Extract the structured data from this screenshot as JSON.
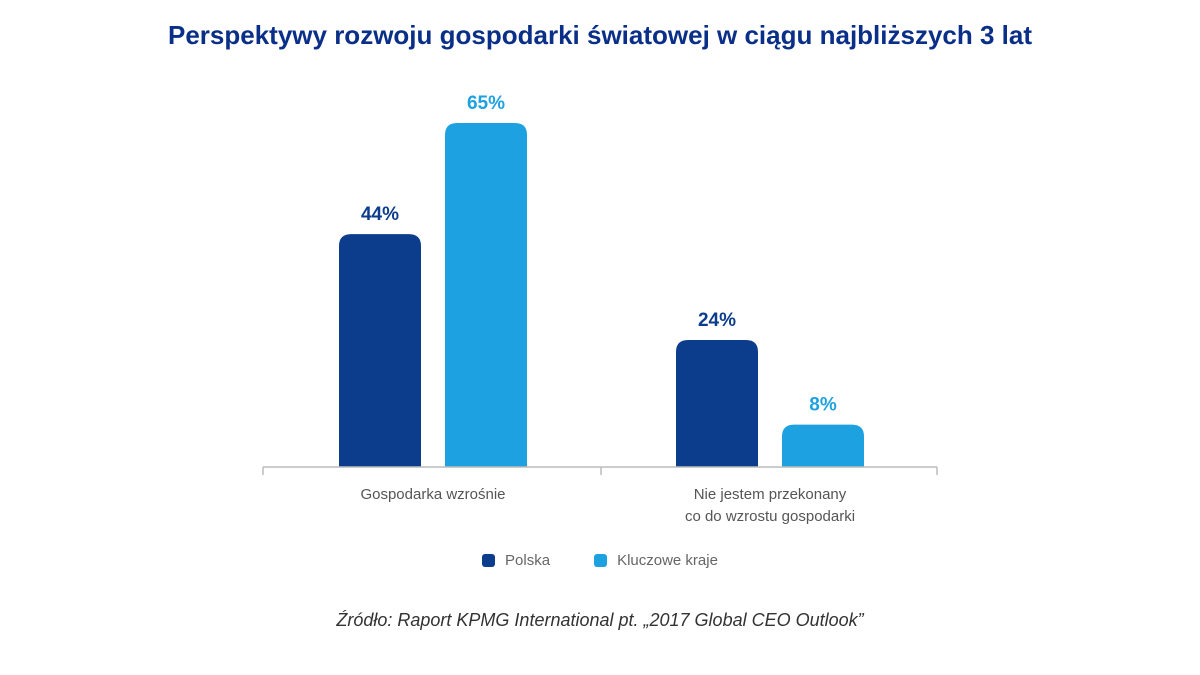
{
  "chart_data": {
    "type": "bar",
    "title": "Perspektywy rozwoju gospodarki światowej w ciągu najbliższych 3 lat",
    "categories": [
      [
        "Gospodarka wzrośnie"
      ],
      [
        "Nie jestem przekonany",
        "co do wzrostu gospodarki"
      ]
    ],
    "series": [
      {
        "name": "Polska",
        "values": [
          44,
          24
        ],
        "labels": [
          "44%",
          "24%"
        ],
        "color": "#0c3d8c"
      },
      {
        "name": "Kluczowe kraje",
        "values": [
          65,
          8
        ],
        "labels": [
          "65%",
          "8%"
        ],
        "color": "#1ea1e0"
      }
    ],
    "ylim": [
      0,
      65
    ],
    "grid": false,
    "legend_position": "bottom"
  },
  "source": "Źródło: Raport KPMG International pt. „2017 Global CEO Outlook”",
  "colors": {
    "title": "#0a2f88",
    "axis": "#bbbbbb",
    "category_label": "#555555"
  }
}
